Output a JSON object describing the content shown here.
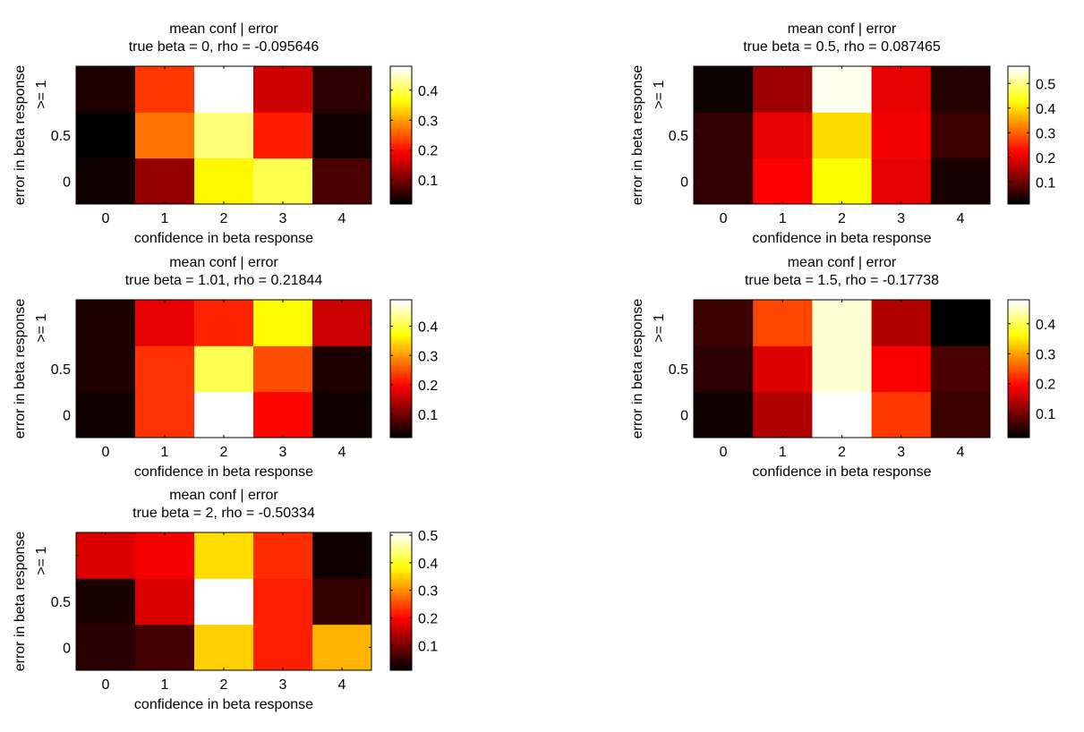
{
  "figure": {
    "background": "#ffffff",
    "colormap": "hot"
  },
  "chart_data": [
    {
      "type": "heatmap",
      "title": "mean conf | error",
      "subtitle": "true beta = 0, rho = -0.095646",
      "xlabel": "confidence in beta response",
      "ylabel": "error in beta response",
      "x_categories": [
        "0",
        "1",
        "2",
        "3",
        "4"
      ],
      "y_categories": [
        "0",
        "0.5",
        ">= 1"
      ],
      "values": [
        [
          0.03,
          0.12,
          0.36,
          0.4,
          0.07
        ],
        [
          0.02,
          0.27,
          0.42,
          0.21,
          0.03
        ],
        [
          0.04,
          0.23,
          0.48,
          0.16,
          0.05
        ]
      ],
      "clim": [
        0.02,
        0.48
      ],
      "colorbar_ticks": [
        0.1,
        0.2,
        0.3,
        0.4
      ]
    },
    {
      "type": "heatmap",
      "title": "mean conf | error",
      "subtitle": "true beta = 0.5, rho = 0.087465",
      "xlabel": "confidence in beta response",
      "ylabel": "error in beta response",
      "x_categories": [
        "0",
        "1",
        "2",
        "3",
        "4"
      ],
      "y_categories": [
        "0",
        "0.5",
        ">= 1"
      ],
      "values": [
        [
          0.05,
          0.22,
          0.43,
          0.2,
          0.03
        ],
        [
          0.05,
          0.2,
          0.4,
          0.21,
          0.06
        ],
        [
          0.02,
          0.14,
          0.56,
          0.2,
          0.04
        ]
      ],
      "clim": [
        0.01,
        0.57
      ],
      "colorbar_ticks": [
        0.1,
        0.2,
        0.3,
        0.4,
        0.5
      ]
    },
    {
      "type": "heatmap",
      "title": "mean conf | error",
      "subtitle": "true beta = 1.01, rho = 0.21844",
      "xlabel": "confidence in beta response",
      "ylabel": "error in beta response",
      "x_categories": [
        "0",
        "1",
        "2",
        "3",
        "4"
      ],
      "y_categories": [
        "0",
        "0.5",
        ">= 1"
      ],
      "values": [
        [
          0.03,
          0.23,
          0.49,
          0.2,
          0.03
        ],
        [
          0.04,
          0.23,
          0.41,
          0.25,
          0.04
        ],
        [
          0.04,
          0.18,
          0.22,
          0.37,
          0.16
        ]
      ],
      "clim": [
        0.02,
        0.49
      ],
      "colorbar_ticks": [
        0.1,
        0.2,
        0.3,
        0.4
      ]
    },
    {
      "type": "heatmap",
      "title": "mean conf | error",
      "subtitle": "true beta = 1.5, rho = -0.17738",
      "xlabel": "confidence in beta response",
      "ylabel": "error in beta response",
      "x_categories": [
        "0",
        "1",
        "2",
        "3",
        "4"
      ],
      "y_categories": [
        "0",
        "0.5",
        ">= 1"
      ],
      "values": [
        [
          0.03,
          0.14,
          0.48,
          0.23,
          0.06
        ],
        [
          0.05,
          0.17,
          0.46,
          0.19,
          0.07
        ],
        [
          0.06,
          0.24,
          0.46,
          0.14,
          0.02
        ]
      ],
      "clim": [
        0.02,
        0.48
      ],
      "colorbar_ticks": [
        0.1,
        0.2,
        0.3,
        0.4
      ]
    },
    {
      "type": "heatmap",
      "title": "mean conf | error",
      "subtitle": "true beta = 2, rho = -0.50334",
      "xlabel": "confidence in beta response",
      "ylabel": "error in beta response",
      "x_categories": [
        "0",
        "1",
        "2",
        "3",
        "4"
      ],
      "y_categories": [
        "0",
        "0.5",
        ">= 1"
      ],
      "values": [
        [
          0.04,
          0.06,
          0.35,
          0.22,
          0.33
        ],
        [
          0.03,
          0.17,
          0.51,
          0.22,
          0.05
        ],
        [
          0.17,
          0.19,
          0.36,
          0.23,
          0.02
        ]
      ],
      "clim": [
        0.01,
        0.51
      ],
      "colorbar_ticks": [
        0.1,
        0.2,
        0.3,
        0.4,
        0.5
      ]
    }
  ]
}
